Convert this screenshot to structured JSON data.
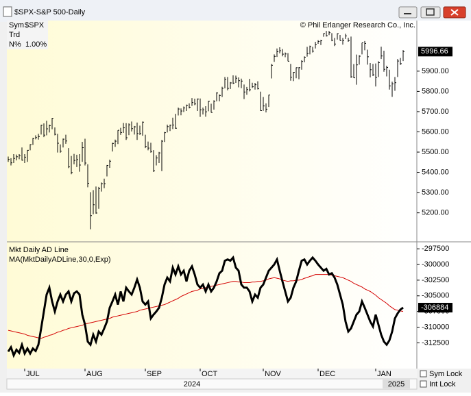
{
  "window": {
    "title": "$SPX-S&P 500-Daily",
    "sym_label": "Sym",
    "sym": "$SPX",
    "trd_label": "Trd",
    "n_label": "N%",
    "n_value": "1.00%",
    "copyright": "© Phil Erlanger Research Co., Inc.",
    "sym_lock": "Sym Lock",
    "int_lock": "Int Lock"
  },
  "chart_data": [
    {
      "type": "ohlc",
      "color": "#000000",
      "years": [
        "2024",
        "2025"
      ],
      "categories": [
        null,
        null,
        null,
        null,
        null,
        null,
        "JUL",
        null,
        null,
        null,
        null,
        null,
        null,
        null,
        null,
        null,
        null,
        null,
        null,
        null,
        null,
        null,
        null,
        null,
        null,
        null,
        null,
        null,
        "AUG",
        null,
        null,
        null,
        null,
        null,
        null,
        null,
        null,
        null,
        null,
        null,
        null,
        null,
        null,
        null,
        null,
        null,
        null,
        null,
        null,
        null,
        "SEP",
        null,
        null,
        null,
        null,
        null,
        null,
        null,
        null,
        null,
        null,
        null,
        null,
        null,
        null,
        null,
        null,
        null,
        null,
        null,
        "OCT",
        null,
        null,
        null,
        null,
        null,
        null,
        null,
        null,
        null,
        null,
        null,
        null,
        null,
        null,
        null,
        null,
        null,
        null,
        null,
        null,
        null,
        null,
        "NOV",
        null,
        null,
        null,
        null,
        null,
        null,
        null,
        null,
        null,
        null,
        null,
        null,
        null,
        null,
        null,
        null,
        null,
        null,
        null,
        "DEC",
        null,
        null,
        null,
        null,
        null,
        null,
        null,
        null,
        null,
        null,
        null,
        null,
        null,
        null,
        null,
        null,
        null,
        null,
        null,
        null,
        "JAN",
        null,
        null,
        null,
        null,
        null,
        null,
        null,
        null,
        null,
        null
      ],
      "high": [
        5478,
        5470,
        5490,
        5488,
        5490,
        5523,
        5490,
        5510,
        5539,
        5570,
        5583,
        5590,
        5635,
        5642,
        5655,
        5636,
        5669,
        5622,
        5590,
        5538,
        5567,
        5586,
        5520,
        5481,
        5491,
        5487,
        5490,
        5551,
        5566,
        5440,
        5302,
        5312,
        5330,
        5328,
        5350,
        5369,
        5436,
        5463,
        5546,
        5562,
        5608,
        5620,
        5644,
        5643,
        5642,
        5651,
        5629,
        5646,
        5631,
        5651,
        5586,
        5552,
        5546,
        5510,
        5485,
        5501,
        5560,
        5600,
        5636,
        5636,
        5670,
        5689,
        5720,
        5716,
        5725,
        5735,
        5741,
        5767,
        5764,
        5765,
        5765,
        5720,
        5727,
        5753,
        5739,
        5756,
        5796,
        5785,
        5823,
        5871,
        5871,
        5846,
        5879,
        5878,
        5869,
        5863,
        5834,
        5822,
        5862,
        5843,
        5842,
        5850,
        5799,
        5772,
        5741,
        5783,
        5936,
        5983,
        6012,
        6018,
        6009,
        5992,
        5989,
        5936,
        5896,
        5918,
        5920,
        5954,
        5973,
        6020,
        6026,
        6020,
        6045,
        6053,
        6055,
        6087,
        6099,
        6099,
        6088,
        6064,
        6087,
        6079,
        6064,
        6085,
        6065,
        6071,
        5935,
        5982,
        5979,
        6040,
        6049,
        6006,
        5940,
        5936,
        5938,
        5949,
        6021,
        6001,
        5927,
        5907,
        5848,
        5871,
        5960,
        5965,
        6004
      ],
      "low": [
        5452,
        5434,
        5446,
        5459,
        5465,
        5458,
        5446,
        5452,
        5509,
        5535,
        5563,
        5562,
        5587,
        5574,
        5583,
        5597,
        5613,
        5583,
        5498,
        5497,
        5523,
        5541,
        5421,
        5391,
        5440,
        5426,
        5403,
        5452,
        5434,
        5326,
        5119,
        5193,
        5196,
        5220,
        5305,
        5322,
        5380,
        5422,
        5503,
        5526,
        5540,
        5585,
        5595,
        5560,
        5584,
        5602,
        5587,
        5560,
        5585,
        5581,
        5520,
        5509,
        5497,
        5402,
        5434,
        5446,
        5406,
        5550,
        5597,
        5604,
        5614,
        5615,
        5681,
        5682,
        5698,
        5703,
        5716,
        5728,
        5732,
        5703,
        5674,
        5686,
        5675,
        5702,
        5695,
        5710,
        5751,
        5751,
        5772,
        5815,
        5805,
        5812,
        5836,
        5842,
        5820,
        5816,
        5762,
        5783,
        5800,
        5817,
        5809,
        5810,
        5704,
        5704,
        5696,
        5723,
        5864,
        5946,
        5970,
        5988,
        5973,
        5969,
        5949,
        5853,
        5851,
        5865,
        5860,
        5907,
        5944,
        5972,
        5983,
        5992,
        6012,
        6035,
        6029,
        6070,
        6071,
        6078,
        6048,
        6024,
        6056,
        6051,
        6031,
        6059,
        6045,
        5867,
        5866,
        5833,
        5932,
        5983,
        6003,
        5932,
        5869,
        5876,
        5824,
        5871,
        5960,
        5897,
        5874,
        5809,
        5773,
        5803,
        5871,
        5931,
        5950
      ],
      "close": [
        5464,
        5447,
        5469,
        5477,
        5482,
        5460,
        5475,
        5509,
        5537,
        5567,
        5572,
        5577,
        5633,
        5584,
        5615,
        5631,
        5667,
        5588,
        5544,
        5505,
        5564,
        5555,
        5427,
        5399,
        5459,
        5463,
        5436,
        5522,
        5446,
        5346,
        5186,
        5240,
        5199,
        5319,
        5344,
        5344,
        5434,
        5455,
        5543,
        5554,
        5608,
        5597,
        5620,
        5571,
        5635,
        5616,
        5625,
        5592,
        5592,
        5648,
        5528,
        5520,
        5503,
        5408,
        5471,
        5496,
        5554,
        5596,
        5626,
        5633,
        5634,
        5618,
        5713,
        5703,
        5718,
        5732,
        5722,
        5745,
        5738,
        5762,
        5709,
        5709,
        5699,
        5751,
        5696,
        5751,
        5792,
        5780,
        5815,
        5859,
        5815,
        5842,
        5841,
        5865,
        5853,
        5851,
        5797,
        5809,
        5808,
        5823,
        5833,
        5813,
        5705,
        5728,
        5712,
        5782,
        5929,
        5973,
        5996,
        6001,
        5984,
        5985,
        5949,
        5870,
        5894,
        5917,
        5917,
        5948,
        5969,
        5987,
        6021,
        5999,
        6032,
        6047,
        6050,
        6086,
        6075,
        6090,
        6053,
        6034,
        6085,
        6051,
        6051,
        6074,
        6051,
        5872,
        5867,
        5931,
        5974,
        6040,
        6037,
        5971,
        5907,
        5882,
        5869,
        5942,
        5975,
        5909,
        5918,
        5827,
        5837,
        5843,
        5950,
        5937,
        5996.66
      ],
      "ylim": [
        5060,
        6150
      ],
      "yticks": [
        {
          "value": 5200,
          "label": "5200.00"
        },
        {
          "value": 5300,
          "label": "5300.00"
        },
        {
          "value": 5400,
          "label": "5400.00"
        },
        {
          "value": 5500,
          "label": "5500.00"
        },
        {
          "value": 5600,
          "label": "5600.00"
        },
        {
          "value": 5700,
          "label": "5700.00"
        },
        {
          "value": 5800,
          "label": "5800.00"
        },
        {
          "value": 5900,
          "label": "5900.00"
        }
      ]
    },
    {
      "type": "line",
      "series": [
        {
          "name": "Mkt Daily AD Line",
          "color": "#000000",
          "values": [
            -313900,
            -313200,
            -314500,
            -313600,
            -314100,
            -312800,
            -314200,
            -313400,
            -314200,
            -313400,
            -313800,
            -312800,
            -310200,
            -307500,
            -304800,
            -303700,
            -305900,
            -307500,
            -305900,
            -304800,
            -305900,
            -304800,
            -304300,
            -305900,
            -304600,
            -304300,
            -304800,
            -308000,
            -309600,
            -312300,
            -312800,
            -311200,
            -312300,
            -310700,
            -311200,
            -310200,
            -309100,
            -306900,
            -305900,
            -304800,
            -306400,
            -304300,
            -305900,
            -303700,
            -304300,
            -304800,
            -303700,
            -302400,
            -303700,
            -305900,
            -306400,
            -305900,
            -308600,
            -308000,
            -307500,
            -306900,
            -305300,
            -303200,
            -302100,
            -302700,
            -300500,
            -301600,
            -300300,
            -301600,
            -301000,
            -302700,
            -301000,
            -300300,
            -301600,
            -303200,
            -303700,
            -303200,
            -304300,
            -303200,
            -304300,
            -303700,
            -302700,
            -301400,
            -301000,
            -299400,
            -299200,
            -299400,
            -298900,
            -300500,
            -301000,
            -303200,
            -303700,
            -303700,
            -304300,
            -305900,
            -304800,
            -305300,
            -303700,
            -303200,
            -302100,
            -301000,
            -300500,
            -300000,
            -299200,
            -301000,
            -302700,
            -304300,
            -305900,
            -305300,
            -303700,
            -302700,
            -301000,
            -299400,
            -299200,
            -300000,
            -299400,
            -298900,
            -299400,
            -300000,
            -300500,
            -301000,
            -300700,
            -301600,
            -301400,
            -302100,
            -303200,
            -304800,
            -306400,
            -309100,
            -310700,
            -310200,
            -309100,
            -308000,
            -307500,
            -305900,
            -306900,
            -308000,
            -309100,
            -309900,
            -308000,
            -309600,
            -311200,
            -312300,
            -312800,
            -312100,
            -310700,
            -308600,
            -307800,
            -307200,
            -306884
          ]
        },
        {
          "name": "MA(MktDailyADLine,30,0,Exp)",
          "color": "#d40000",
          "values": [
            -310500,
            -310600,
            -310700,
            -310800,
            -310900,
            -311000,
            -311100,
            -311300,
            -311400,
            -311500,
            -311600,
            -311700,
            -311800,
            -311600,
            -311500,
            -311300,
            -311200,
            -311000,
            -310800,
            -310700,
            -310500,
            -310400,
            -310200,
            -310100,
            -310000,
            -309900,
            -309800,
            -309700,
            -309500,
            -309400,
            -309300,
            -309200,
            -309100,
            -309000,
            -308900,
            -308800,
            -308700,
            -308600,
            -308400,
            -308300,
            -308200,
            -308100,
            -308000,
            -307900,
            -307800,
            -307700,
            -307600,
            -307500,
            -307300,
            -307200,
            -307100,
            -307000,
            -306900,
            -306800,
            -306700,
            -306600,
            -306500,
            -306400,
            -306200,
            -306000,
            -305800,
            -305600,
            -305400,
            -305100,
            -304900,
            -304700,
            -304500,
            -304300,
            -304200,
            -304100,
            -303900,
            -303800,
            -303700,
            -303600,
            -303500,
            -303400,
            -303300,
            -303200,
            -303100,
            -303000,
            -302900,
            -302800,
            -302700,
            -302700,
            -302800,
            -302800,
            -302900,
            -302900,
            -302900,
            -302800,
            -302800,
            -302700,
            -302700,
            -302600,
            -302500,
            -302300,
            -302200,
            -302100,
            -302200,
            -302300,
            -302500,
            -302600,
            -302700,
            -302600,
            -302600,
            -302500,
            -302500,
            -302400,
            -302200,
            -302100,
            -301900,
            -301800,
            -301600,
            -301600,
            -301600,
            -301600,
            -301600,
            -301600,
            -301700,
            -301800,
            -301900,
            -302000,
            -302100,
            -302300,
            -302500,
            -302700,
            -303000,
            -303200,
            -303400,
            -303600,
            -303900,
            -304100,
            -304300,
            -304600,
            -304900,
            -305300,
            -305600,
            -305900,
            -306200,
            -306600,
            -306900,
            -307200,
            -307300,
            -307400,
            -307500
          ]
        }
      ],
      "ylim": [
        -316500,
        -296500
      ],
      "yticks": [
        -297500,
        -300000,
        -302500,
        -305000,
        -307500,
        -310000,
        -312500
      ]
    }
  ]
}
